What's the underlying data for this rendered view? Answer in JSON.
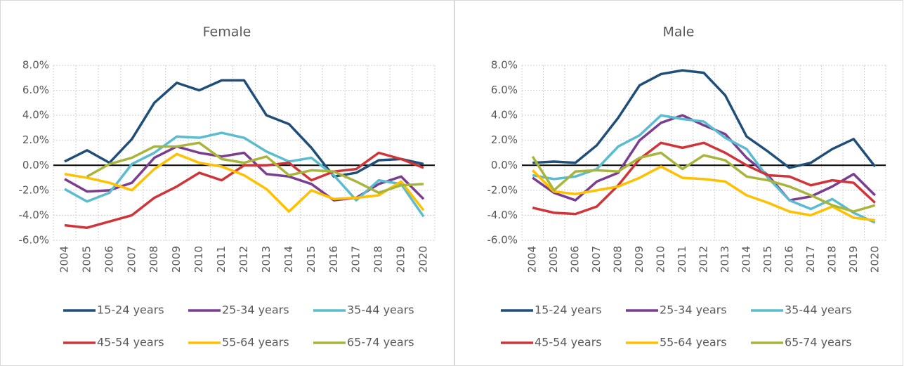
{
  "chart_data": [
    {
      "type": "line",
      "title": "Female",
      "categories": [
        "2004",
        "2005",
        "2006",
        "2007",
        "2008",
        "2009",
        "2010",
        "2011",
        "2012",
        "2013",
        "2014",
        "2015",
        "2016",
        "2017",
        "2018",
        "2019",
        "2020"
      ],
      "ylim": [
        -6,
        8
      ],
      "yticks": [
        {
          "value": -6,
          "label": "-6.0%"
        },
        {
          "value": -4,
          "label": "-4.0%"
        },
        {
          "value": -2,
          "label": "-2.0%"
        },
        {
          "value": 0,
          "label": "0.0%"
        },
        {
          "value": 2,
          "label": "2.0%"
        },
        {
          "value": 4,
          "label": "4.0%"
        },
        {
          "value": 6,
          "label": "6.0%"
        },
        {
          "value": 8,
          "label": "8.0%"
        }
      ],
      "grid": true,
      "series": [
        {
          "name": "15-24 years",
          "color": "#1f4e79",
          "values": [
            0.3,
            1.2,
            0.2,
            2.1,
            5.0,
            6.6,
            6.0,
            6.8,
            6.8,
            4.0,
            3.3,
            1.4,
            -0.9,
            -0.6,
            0.4,
            0.5,
            0.1
          ]
        },
        {
          "name": "25-34 years",
          "color": "#7a3d8f",
          "values": [
            -1.1,
            -2.1,
            -2.0,
            -1.4,
            0.6,
            1.5,
            1.0,
            0.7,
            1.0,
            -0.7,
            -0.9,
            -1.5,
            -2.8,
            -2.6,
            -1.5,
            -0.9,
            -2.7
          ]
        },
        {
          "name": "35-44 years",
          "color": "#5bbccf",
          "values": [
            -1.9,
            -2.9,
            -2.2,
            0.1,
            1.0,
            2.3,
            2.2,
            2.6,
            2.2,
            1.1,
            0.3,
            0.6,
            -0.8,
            -2.8,
            -1.2,
            -1.5,
            -4.1
          ]
        },
        {
          "name": "45-54 years",
          "color": "#d13438",
          "values": [
            -4.8,
            -5.0,
            -4.5,
            -4.0,
            -2.6,
            -1.7,
            -0.6,
            -1.2,
            0.0,
            0.0,
            0.2,
            -1.2,
            -0.5,
            -0.3,
            1.0,
            0.5,
            -0.2
          ]
        },
        {
          "name": "55-64 years",
          "color": "#ffc000",
          "values": [
            -0.7,
            -1.0,
            -1.4,
            -2.0,
            -0.3,
            0.9,
            0.2,
            -0.1,
            -0.8,
            -1.9,
            -3.7,
            -2.0,
            -2.7,
            -2.6,
            -2.4,
            -1.3,
            -3.6
          ]
        },
        {
          "name": "65-74 years",
          "color": "#a9b53a",
          "values": [
            null,
            -0.9,
            0.1,
            0.6,
            1.5,
            1.5,
            1.8,
            0.5,
            0.2,
            0.7,
            -0.8,
            -0.4,
            -0.5,
            -1.3,
            -2.2,
            -1.6,
            -1.5
          ]
        }
      ]
    },
    {
      "type": "line",
      "title": "Male",
      "categories": [
        "2004",
        "2005",
        "2006",
        "2007",
        "2008",
        "2009",
        "2010",
        "2011",
        "2012",
        "2013",
        "2014",
        "2015",
        "2016",
        "2017",
        "2018",
        "2019",
        "2020"
      ],
      "ylim": [
        -6,
        8
      ],
      "yticks": [
        {
          "value": -6,
          "label": "-6.0%"
        },
        {
          "value": -4,
          "label": "-4.0%"
        },
        {
          "value": -2,
          "label": "-2.0%"
        },
        {
          "value": 0,
          "label": "0.0%"
        },
        {
          "value": 2,
          "label": "2.0%"
        },
        {
          "value": 4,
          "label": "4.0%"
        },
        {
          "value": 6,
          "label": "6.0%"
        },
        {
          "value": 8,
          "label": "8.0%"
        }
      ],
      "grid": true,
      "series": [
        {
          "name": "15-24 years",
          "color": "#1f4e79",
          "values": [
            0.2,
            0.3,
            0.2,
            1.6,
            3.8,
            6.4,
            7.3,
            7.6,
            7.4,
            5.6,
            2.3,
            1.1,
            -0.2,
            0.2,
            1.3,
            2.1,
            -0.1
          ]
        },
        {
          "name": "25-34 years",
          "color": "#7a3d8f",
          "values": [
            -1.0,
            -2.2,
            -2.8,
            -1.3,
            -0.6,
            2.0,
            3.4,
            4.0,
            3.2,
            2.5,
            0.6,
            -0.8,
            -2.8,
            -2.5,
            -1.7,
            -0.7,
            -2.4
          ]
        },
        {
          "name": "35-44 years",
          "color": "#5bbccf",
          "values": [
            -0.8,
            -1.1,
            -0.9,
            -0.3,
            1.5,
            2.4,
            4.0,
            3.7,
            3.5,
            2.2,
            1.3,
            -1.0,
            -2.8,
            -3.5,
            -2.7,
            -3.8,
            -4.6
          ]
        },
        {
          "name": "45-54 years",
          "color": "#d13438",
          "values": [
            -3.4,
            -3.8,
            -3.9,
            -3.3,
            -1.6,
            0.5,
            1.8,
            1.4,
            1.8,
            1.0,
            0.0,
            -0.8,
            -0.9,
            -1.6,
            -1.2,
            -1.4,
            -3.0
          ]
        },
        {
          "name": "55-64 years",
          "color": "#ffc000",
          "values": [
            -0.4,
            -2.1,
            -2.3,
            -2.0,
            -1.7,
            -1.0,
            -0.1,
            -1.0,
            -1.1,
            -1.3,
            -2.4,
            -3.0,
            -3.7,
            -4.0,
            -3.3,
            -4.2,
            -4.4
          ]
        },
        {
          "name": "65-74 years",
          "color": "#a9b53a",
          "values": [
            0.7,
            -2.0,
            -0.5,
            -0.4,
            -0.5,
            0.6,
            1.0,
            -0.3,
            0.8,
            0.4,
            -0.9,
            -1.2,
            -1.7,
            -2.4,
            -3.2,
            -3.7,
            -3.2
          ]
        }
      ]
    }
  ]
}
